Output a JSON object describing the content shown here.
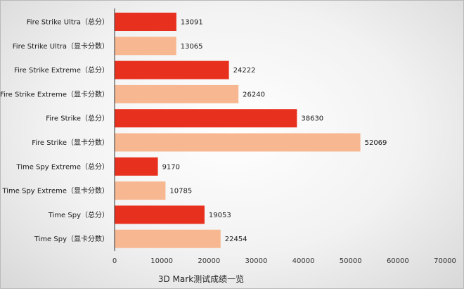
{
  "chart_data": {
    "type": "bar",
    "orientation": "horizontal",
    "categories": [
      "Fire Strike  Ultra（总分）",
      "Fire Strike  Ultra（显卡分数）",
      "Fire Strike  Extreme（总分）",
      "Fire Strike  Extreme（显卡分数）",
      "Fire Strike（总分）",
      "Fire Strike（显卡分数）",
      "Time Spy Extreme（总分）",
      "Time Spy Extreme（显卡分数）",
      "Time Spy（总分）",
      "Time Spy（显卡分数）"
    ],
    "values": [
      13091,
      13065,
      24222,
      26240,
      38630,
      52069,
      9170,
      10785,
      19053,
      22454
    ],
    "bar_colors": [
      "#e8301e",
      "#f7b891",
      "#e8301e",
      "#f7b891",
      "#e8301e",
      "#f7b891",
      "#e8301e",
      "#f7b891",
      "#e8301e",
      "#f7b891"
    ],
    "xlabel": "3D Mark测试成绩一览",
    "xlim": [
      0,
      70000
    ],
    "x_ticks": [
      "0",
      "10000",
      "20000",
      "30000",
      "40000",
      "50000",
      "60000",
      "70000"
    ],
    "data_labels": true,
    "grid": false,
    "legend": "none"
  }
}
